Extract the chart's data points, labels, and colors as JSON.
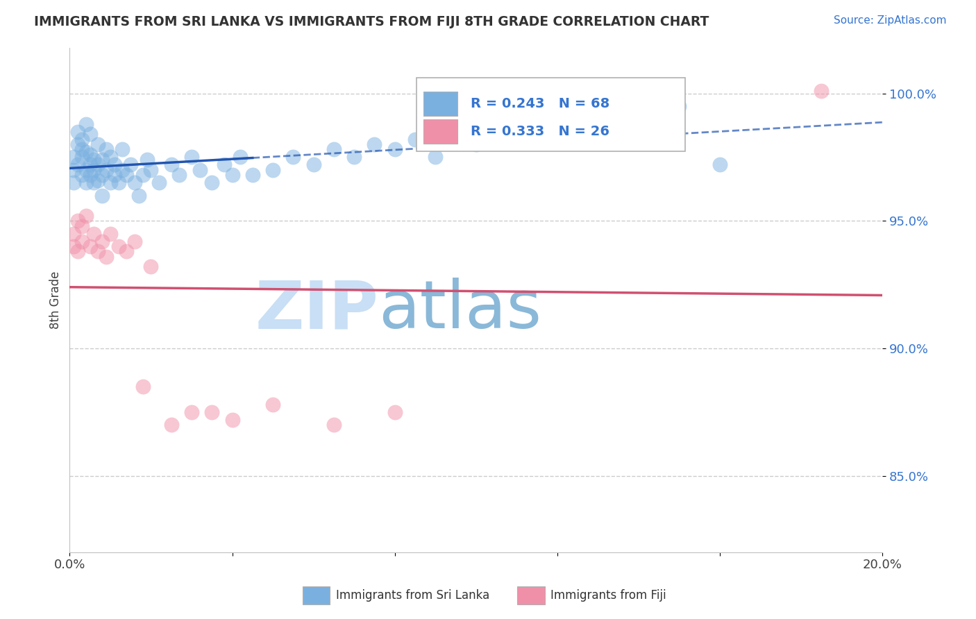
{
  "title": "IMMIGRANTS FROM SRI LANKA VS IMMIGRANTS FROM FIJI 8TH GRADE CORRELATION CHART",
  "source_text": "Source: ZipAtlas.com",
  "ylabel": "8th Grade",
  "xlim": [
    0.0,
    0.2
  ],
  "ylim": [
    0.82,
    1.018
  ],
  "xtick_positions": [
    0.0,
    0.04,
    0.08,
    0.12,
    0.16,
    0.2
  ],
  "xtick_labels": [
    "0.0%",
    "",
    "",
    "",
    "",
    "20.0%"
  ],
  "ytick_positions": [
    0.85,
    0.9,
    0.95,
    1.0
  ],
  "ytick_labels": [
    "85.0%",
    "90.0%",
    "95.0%",
    "100.0%"
  ],
  "legend_bottom_labels": [
    "Immigrants from Sri Lanka",
    "Immigrants from Fiji"
  ],
  "sri_lanka_color": "#7ab0e0",
  "fiji_color": "#f090a8",
  "sri_lanka_line_color": "#2255b0",
  "fiji_line_color": "#d05070",
  "watermark_zip": "ZIP",
  "watermark_atlas": "atlas",
  "watermark_color_zip": "#c0d8f0",
  "watermark_color_atlas": "#90b8d8",
  "sri_lanka_R": 0.243,
  "sri_lanka_N": 68,
  "fiji_R": 0.333,
  "fiji_N": 26,
  "blue_label_color": "#3575d0",
  "grid_color": "#cccccc",
  "background_color": "#ffffff",
  "sl_x": [
    0.001,
    0.001,
    0.001,
    0.002,
    0.002,
    0.002,
    0.003,
    0.003,
    0.003,
    0.003,
    0.004,
    0.004,
    0.004,
    0.004,
    0.005,
    0.005,
    0.005,
    0.005,
    0.006,
    0.006,
    0.006,
    0.007,
    0.007,
    0.007,
    0.008,
    0.008,
    0.008,
    0.009,
    0.009,
    0.01,
    0.01,
    0.011,
    0.011,
    0.012,
    0.013,
    0.013,
    0.014,
    0.015,
    0.016,
    0.017,
    0.018,
    0.019,
    0.02,
    0.022,
    0.025,
    0.027,
    0.03,
    0.032,
    0.035,
    0.038,
    0.04,
    0.042,
    0.045,
    0.05,
    0.055,
    0.06,
    0.065,
    0.07,
    0.075,
    0.08,
    0.085,
    0.09,
    0.1,
    0.11,
    0.12,
    0.135,
    0.15,
    0.16
  ],
  "sl_y": [
    0.97,
    0.975,
    0.965,
    0.98,
    0.985,
    0.972,
    0.978,
    0.968,
    0.975,
    0.982,
    0.97,
    0.977,
    0.965,
    0.988,
    0.972,
    0.968,
    0.976,
    0.984,
    0.97,
    0.974,
    0.965,
    0.972,
    0.966,
    0.98,
    0.968,
    0.974,
    0.96,
    0.97,
    0.978,
    0.965,
    0.975,
    0.968,
    0.972,
    0.965,
    0.97,
    0.978,
    0.968,
    0.972,
    0.965,
    0.96,
    0.968,
    0.974,
    0.97,
    0.965,
    0.972,
    0.968,
    0.975,
    0.97,
    0.965,
    0.972,
    0.968,
    0.975,
    0.968,
    0.97,
    0.975,
    0.972,
    0.978,
    0.975,
    0.98,
    0.978,
    0.982,
    0.975,
    0.98,
    0.985,
    0.988,
    0.992,
    0.995,
    0.972
  ],
  "fj_x": [
    0.001,
    0.001,
    0.002,
    0.002,
    0.003,
    0.003,
    0.004,
    0.005,
    0.006,
    0.007,
    0.008,
    0.009,
    0.01,
    0.012,
    0.014,
    0.016,
    0.018,
    0.02,
    0.025,
    0.03,
    0.035,
    0.04,
    0.05,
    0.065,
    0.08,
    0.185
  ],
  "fj_y": [
    0.945,
    0.94,
    0.95,
    0.938,
    0.942,
    0.948,
    0.952,
    0.94,
    0.945,
    0.938,
    0.942,
    0.936,
    0.945,
    0.94,
    0.938,
    0.942,
    0.885,
    0.932,
    0.87,
    0.875,
    0.875,
    0.872,
    0.878,
    0.87,
    0.875,
    1.001
  ]
}
